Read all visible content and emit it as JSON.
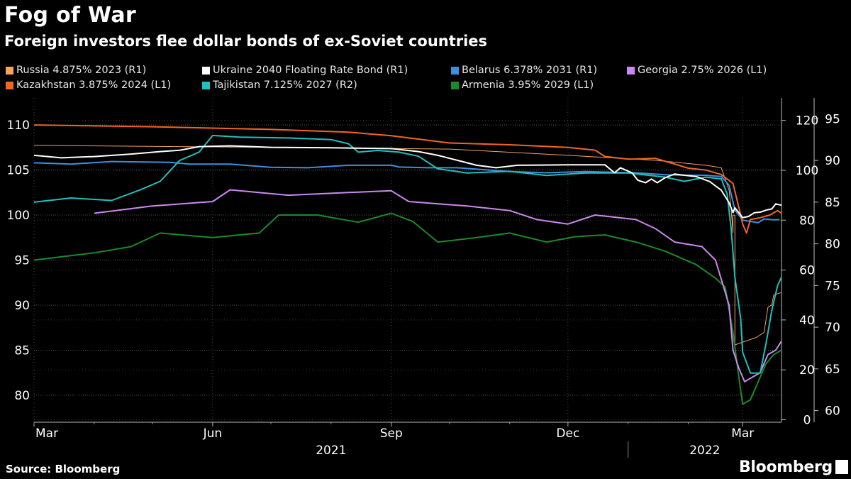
{
  "title": "Fog of War",
  "subtitle": "Foreign investors flee dollar bonds of ex-Soviet countries",
  "source": "Source: Bloomberg",
  "brand": "Bloomberg",
  "chart_data": {
    "type": "line",
    "x_axis": {
      "ticks": [
        "Mar",
        "Jun",
        "Sep",
        "Dec",
        "Mar"
      ],
      "years": [
        "2021",
        "2022"
      ],
      "range": [
        "2021-03-01",
        "2022-03-21"
      ]
    },
    "axes": {
      "L1": {
        "range": [
          77,
          113
        ],
        "ticks": [
          80,
          85,
          90,
          95,
          100,
          105,
          110
        ]
      },
      "R1": {
        "range": [
          -1,
          129
        ],
        "ticks": [
          0,
          20,
          40,
          60,
          80,
          100,
          120
        ]
      },
      "R2": {
        "range": [
          58.6,
          97.5
        ],
        "ticks": [
          60,
          65,
          70,
          75,
          80,
          85,
          90,
          95
        ]
      }
    },
    "grid": true,
    "legend_position": "top",
    "series": [
      {
        "name": "Russia 4.875% 2023 (R1)",
        "axis": "R1",
        "color": "#f4a460",
        "points": [
          [
            "2021-03-01",
            110
          ],
          [
            "2021-05-15",
            109.5
          ],
          [
            "2021-08-01",
            109
          ],
          [
            "2021-10-01",
            108.5
          ],
          [
            "2021-12-01",
            106
          ],
          [
            "2022-01-15",
            104
          ],
          [
            "2022-02-10",
            102
          ],
          [
            "2022-02-18",
            101
          ],
          [
            "2022-02-22",
            92
          ],
          [
            "2022-02-23",
            85
          ],
          [
            "2022-02-24",
            75
          ],
          [
            "2022-02-24",
            82
          ],
          [
            "2022-02-25",
            82
          ],
          [
            "2022-02-25",
            30
          ],
          [
            "2022-03-08",
            33
          ],
          [
            "2022-03-12",
            35
          ],
          [
            "2022-03-14",
            45
          ],
          [
            "2022-03-16",
            46
          ],
          [
            "2022-03-17",
            50
          ],
          [
            "2022-03-21",
            51
          ]
        ]
      },
      {
        "name": "Ukraine 2040 Floating Rate Bond (R1)",
        "axis": "R1",
        "color": "#ffffff",
        "points": [
          [
            "2021-03-01",
            106
          ],
          [
            "2021-03-15",
            105
          ],
          [
            "2021-04-01",
            105.5
          ],
          [
            "2021-04-20",
            106.5
          ],
          [
            "2021-05-05",
            107.5
          ],
          [
            "2021-05-15",
            108
          ],
          [
            "2021-05-25",
            109.5
          ],
          [
            "2021-06-10",
            109.8
          ],
          [
            "2021-07-01",
            109.2
          ],
          [
            "2021-08-01",
            109
          ],
          [
            "2021-09-01",
            108.7
          ],
          [
            "2021-09-15",
            107.5
          ],
          [
            "2021-09-25",
            106
          ],
          [
            "2021-10-05",
            104
          ],
          [
            "2021-10-15",
            102
          ],
          [
            "2021-10-25",
            101
          ],
          [
            "2021-11-05",
            102
          ],
          [
            "2021-12-01",
            102.2
          ],
          [
            "2021-12-20",
            102.2
          ],
          [
            "2021-12-25",
            99
          ],
          [
            "2021-12-28",
            101
          ],
          [
            "2022-01-03",
            99
          ],
          [
            "2022-01-06",
            96
          ],
          [
            "2022-01-10",
            95
          ],
          [
            "2022-01-13",
            96.5
          ],
          [
            "2022-01-16",
            95
          ],
          [
            "2022-01-18",
            96
          ],
          [
            "2022-01-20",
            97
          ],
          [
            "2022-01-25",
            98.5
          ],
          [
            "2022-01-30",
            98
          ],
          [
            "2022-02-05",
            97.5
          ],
          [
            "2022-02-12",
            95.5
          ],
          [
            "2022-02-18",
            92
          ],
          [
            "2022-02-22",
            87
          ],
          [
            "2022-02-24",
            83
          ],
          [
            "2022-02-25",
            85
          ],
          [
            "2022-03-01",
            81
          ],
          [
            "2022-03-04",
            81.5
          ],
          [
            "2022-03-07",
            83
          ],
          [
            "2022-03-10",
            83.2
          ],
          [
            "2022-03-13",
            84
          ],
          [
            "2022-03-16",
            84.5
          ],
          [
            "2022-03-18",
            86.5
          ],
          [
            "2022-03-21",
            86
          ]
        ]
      },
      {
        "name": "Belarus 6.378% 2031 (R1)",
        "axis": "R1",
        "color": "#3d8fe0",
        "points": [
          [
            "2021-03-01",
            103
          ],
          [
            "2021-03-20",
            102.5
          ],
          [
            "2021-04-10",
            103.5
          ],
          [
            "2021-05-10",
            103.2
          ],
          [
            "2021-05-20",
            102.5
          ],
          [
            "2021-06-10",
            102.5
          ],
          [
            "2021-07-01",
            101.2
          ],
          [
            "2021-07-20",
            101
          ],
          [
            "2021-08-10",
            102
          ],
          [
            "2021-09-01",
            102
          ],
          [
            "2021-09-05",
            101.3
          ],
          [
            "2021-09-20",
            101
          ],
          [
            "2021-10-05",
            101
          ],
          [
            "2021-11-01",
            99.5
          ],
          [
            "2021-11-20",
            99
          ],
          [
            "2021-12-10",
            99.5
          ],
          [
            "2022-01-05",
            99
          ],
          [
            "2022-01-20",
            98.2
          ],
          [
            "2022-02-01",
            98
          ],
          [
            "2022-02-10",
            98
          ],
          [
            "2022-02-18",
            97.5
          ],
          [
            "2022-02-22",
            94
          ],
          [
            "2022-02-25",
            84
          ],
          [
            "2022-03-01",
            80
          ],
          [
            "2022-03-05",
            79.5
          ],
          [
            "2022-03-09",
            79
          ],
          [
            "2022-03-12",
            80.5
          ],
          [
            "2022-03-16",
            80.2
          ],
          [
            "2022-03-20",
            80.2
          ]
        ]
      },
      {
        "name": "Georgia 2.75% 2026 (L1)",
        "axis": "L1",
        "color": "#cc88f0",
        "points": [
          [
            "2021-04-01",
            100.2
          ],
          [
            "2021-05-01",
            101
          ],
          [
            "2021-06-01",
            101.5
          ],
          [
            "2021-06-10",
            102.8
          ],
          [
            "2021-07-10",
            102.2
          ],
          [
            "2021-08-10",
            102.5
          ],
          [
            "2021-09-01",
            102.7
          ],
          [
            "2021-09-10",
            101.5
          ],
          [
            "2021-10-10",
            101
          ],
          [
            "2021-11-01",
            100.5
          ],
          [
            "2021-11-15",
            99.5
          ],
          [
            "2021-12-01",
            99
          ],
          [
            "2021-12-15",
            100
          ],
          [
            "2022-01-05",
            99.5
          ],
          [
            "2022-01-15",
            98.5
          ],
          [
            "2022-01-25",
            97
          ],
          [
            "2022-02-08",
            96.5
          ],
          [
            "2022-02-15",
            95
          ],
          [
            "2022-02-22",
            90
          ],
          [
            "2022-02-24",
            85
          ],
          [
            "2022-02-27",
            83
          ],
          [
            "2022-03-02",
            81.5
          ],
          [
            "2022-03-06",
            82
          ],
          [
            "2022-03-10",
            82.5
          ],
          [
            "2022-03-14",
            84.5
          ],
          [
            "2022-03-18",
            85
          ],
          [
            "2022-03-21",
            86
          ]
        ]
      },
      {
        "name": "Kazakhstan 3.875% 2024 (L1)",
        "axis": "L1",
        "color": "#f26522",
        "points": [
          [
            "2021-03-01",
            110
          ],
          [
            "2021-05-01",
            109.8
          ],
          [
            "2021-07-01",
            109.5
          ],
          [
            "2021-08-10",
            109.2
          ],
          [
            "2021-09-01",
            108.8
          ],
          [
            "2021-10-01",
            108
          ],
          [
            "2021-11-01",
            107.8
          ],
          [
            "2021-12-01",
            107.5
          ],
          [
            "2021-12-15",
            107.2
          ],
          [
            "2021-12-20",
            106.5
          ],
          [
            "2022-01-01",
            106.2
          ],
          [
            "2022-01-15",
            106.3
          ],
          [
            "2022-02-01",
            105.2
          ],
          [
            "2022-02-10",
            105
          ],
          [
            "2022-02-18",
            104.5
          ],
          [
            "2022-02-24",
            103.5
          ],
          [
            "2022-02-28",
            100
          ],
          [
            "2022-03-01",
            99
          ],
          [
            "2022-03-03",
            98
          ],
          [
            "2022-03-05",
            99.5
          ],
          [
            "2022-03-10",
            99.7
          ],
          [
            "2022-03-15",
            100
          ],
          [
            "2022-03-19",
            100.5
          ],
          [
            "2022-03-21",
            100.2
          ]
        ]
      },
      {
        "name": "Tajikistan 7.125% 2027 (R2)",
        "axis": "R2",
        "color": "#20c0c0",
        "points": [
          [
            "2021-03-01",
            85
          ],
          [
            "2021-03-20",
            85.5
          ],
          [
            "2021-04-10",
            85.2
          ],
          [
            "2021-04-25",
            86.5
          ],
          [
            "2021-05-05",
            87.5
          ],
          [
            "2021-05-15",
            90
          ],
          [
            "2021-05-25",
            91
          ],
          [
            "2021-06-01",
            93
          ],
          [
            "2021-06-15",
            92.8
          ],
          [
            "2021-07-10",
            92.7
          ],
          [
            "2021-08-01",
            92.5
          ],
          [
            "2021-08-10",
            92
          ],
          [
            "2021-08-15",
            91
          ],
          [
            "2021-08-25",
            91.2
          ],
          [
            "2021-09-05",
            91
          ],
          [
            "2021-09-15",
            90.5
          ],
          [
            "2021-09-25",
            89
          ],
          [
            "2021-10-10",
            88.5
          ],
          [
            "2021-11-01",
            88.7
          ],
          [
            "2021-11-20",
            88.2
          ],
          [
            "2021-12-10",
            88.5
          ],
          [
            "2022-01-01",
            88.5
          ],
          [
            "2022-01-20",
            88
          ],
          [
            "2022-01-30",
            87.5
          ],
          [
            "2022-02-10",
            88
          ],
          [
            "2022-02-18",
            87.8
          ],
          [
            "2022-02-21",
            86
          ],
          [
            "2022-02-23",
            82
          ],
          [
            "2022-02-25",
            76
          ],
          [
            "2022-02-28",
            71
          ],
          [
            "2022-03-01",
            67
          ],
          [
            "2022-03-05",
            64.5
          ],
          [
            "2022-03-10",
            64.5
          ],
          [
            "2022-03-13",
            68
          ],
          [
            "2022-03-16",
            72
          ],
          [
            "2022-03-19",
            75
          ],
          [
            "2022-03-21",
            76
          ]
        ]
      },
      {
        "name": "Armenia 3.95% 2029 (L1)",
        "axis": "L1",
        "color": "#1a8a2a",
        "points": [
          [
            "2021-03-01",
            95
          ],
          [
            "2021-04-01",
            95.8
          ],
          [
            "2021-04-20",
            96.5
          ],
          [
            "2021-05-05",
            98
          ],
          [
            "2021-06-01",
            97.5
          ],
          [
            "2021-06-25",
            98
          ],
          [
            "2021-07-05",
            100
          ],
          [
            "2021-07-25",
            100
          ],
          [
            "2021-08-15",
            99.2
          ],
          [
            "2021-09-01",
            100.2
          ],
          [
            "2021-09-12",
            99.3
          ],
          [
            "2021-09-25",
            97
          ],
          [
            "2021-10-15",
            97.5
          ],
          [
            "2021-11-01",
            98
          ],
          [
            "2021-11-20",
            97
          ],
          [
            "2021-12-05",
            97.6
          ],
          [
            "2021-12-20",
            97.8
          ],
          [
            "2022-01-05",
            97
          ],
          [
            "2022-01-20",
            96
          ],
          [
            "2022-02-05",
            94.5
          ],
          [
            "2022-02-15",
            93
          ],
          [
            "2022-02-20",
            92
          ],
          [
            "2022-02-24",
            87
          ],
          [
            "2022-02-27",
            82
          ],
          [
            "2022-03-01",
            79
          ],
          [
            "2022-03-05",
            79.5
          ],
          [
            "2022-03-10",
            82
          ],
          [
            "2022-03-13",
            83.5
          ],
          [
            "2022-03-17",
            84.5
          ],
          [
            "2022-03-21",
            85
          ]
        ]
      }
    ]
  }
}
